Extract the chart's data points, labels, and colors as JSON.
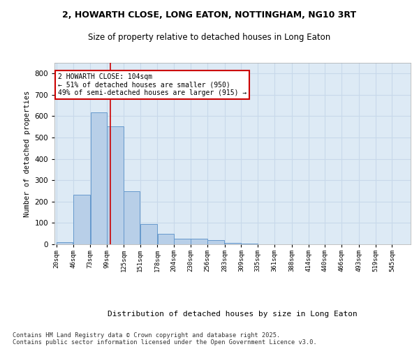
{
  "title_line1": "2, HOWARTH CLOSE, LONG EATON, NOTTINGHAM, NG10 3RT",
  "title_line2": "Size of property relative to detached houses in Long Eaton",
  "xlabel": "Distribution of detached houses by size in Long Eaton",
  "ylabel": "Number of detached properties",
  "footer": "Contains HM Land Registry data © Crown copyright and database right 2025.\nContains public sector information licensed under the Open Government Licence v3.0.",
  "bar_color": "#b8cfe8",
  "bar_edge_color": "#6699cc",
  "grid_color": "#c8d8ea",
  "background_color": "#ddeaf5",
  "annotation_text": "2 HOWARTH CLOSE: 104sqm\n← 51% of detached houses are smaller (950)\n49% of semi-detached houses are larger (915) →",
  "annotation_box_color": "#ffffff",
  "annotation_border_color": "#cc0000",
  "vline_color": "#cc0000",
  "vline_x_index": 3,
  "categories": [
    "20sqm",
    "46sqm",
    "73sqm",
    "99sqm",
    "125sqm",
    "151sqm",
    "178sqm",
    "204sqm",
    "230sqm",
    "256sqm",
    "283sqm",
    "309sqm",
    "335sqm",
    "361sqm",
    "388sqm",
    "414sqm",
    "440sqm",
    "466sqm",
    "493sqm",
    "519sqm",
    "545sqm"
  ],
  "bin_edges": [
    20,
    46,
    73,
    99,
    125,
    151,
    178,
    204,
    230,
    256,
    283,
    309,
    335,
    361,
    388,
    414,
    440,
    466,
    493,
    519,
    545
  ],
  "values": [
    10,
    232,
    617,
    553,
    250,
    95,
    50,
    25,
    25,
    20,
    5,
    2,
    1,
    0,
    0,
    0,
    0,
    0,
    0,
    0,
    0
  ],
  "ylim": [
    0,
    850
  ],
  "yticks": [
    0,
    100,
    200,
    300,
    400,
    500,
    600,
    700,
    800
  ]
}
